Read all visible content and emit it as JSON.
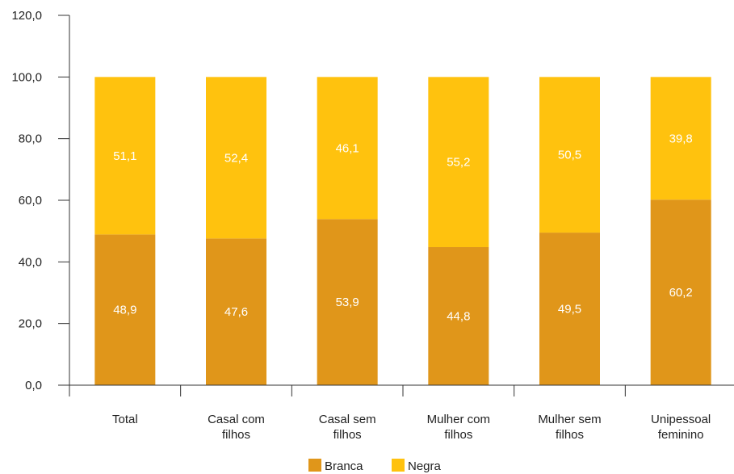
{
  "chart_data": {
    "type": "bar",
    "stacked": true,
    "categories": [
      [
        "Total"
      ],
      [
        "Casal com",
        "filhos"
      ],
      [
        "Casal sem",
        "filhos"
      ],
      [
        "Mulher com",
        "filhos"
      ],
      [
        "Mulher sem",
        "filhos"
      ],
      [
        "Unipessoal",
        "feminino"
      ]
    ],
    "series": [
      {
        "name": "Branca",
        "values": [
          48.9,
          47.6,
          53.9,
          44.8,
          49.5,
          60.2
        ],
        "labels": [
          "48,9",
          "47,6",
          "53,9",
          "44,8",
          "49,5",
          "60,2"
        ],
        "color": "#E0961A"
      },
      {
        "name": "Negra",
        "values": [
          51.1,
          52.4,
          46.1,
          55.2,
          50.5,
          39.8
        ],
        "labels": [
          "51,1",
          "52,4",
          "46,1",
          "55,2",
          "50,5",
          "39,8"
        ],
        "color": "#FFC20E"
      }
    ],
    "ylim": [
      0,
      120
    ],
    "yticks": [
      "0,0",
      "20,0",
      "40,0",
      "60,0",
      "80,0",
      "100,0",
      "120,0"
    ],
    "title": "",
    "xlabel": "",
    "ylabel": "",
    "grid": false,
    "legend_position": "bottom"
  }
}
